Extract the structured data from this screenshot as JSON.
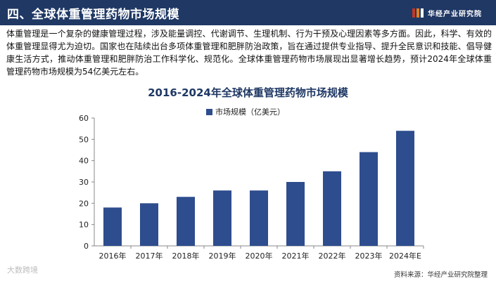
{
  "header": {
    "title": "四、全球体重管理药物市场规模",
    "brand": "华经产业研究院",
    "brand_colors": [
      "#c0392b",
      "#e67e22",
      "#ffffff"
    ]
  },
  "intro": "体重管理是一个复杂的健康管理过程，涉及能量调控、代谢调节、生理机制、行为干预及心理因素等多方面。因此，科学、有效的体重管理显得尤为迫切。国家也在陆续出台多项体重管理和肥胖防治政策，旨在通过提供专业指导、提升全民意识和技能、倡导健康生活方式，推动体重管理和肥胖防治工作科学化、规范化。全球体重管理药物市场展现出显著增长趋势，预计2024年全球体重管理药物市场规模为54亿美元左右。",
  "source": "资料来源：华经产业研究院整理",
  "watermark": "大数跨境",
  "chart_data": {
    "type": "bar",
    "title": "2016-2024年全球体重管理药物市场规模",
    "categories": [
      "2016年",
      "2017年",
      "2018年",
      "2019年",
      "2020年",
      "2021年",
      "2022年",
      "2023年",
      "2024年E"
    ],
    "series": [
      {
        "name": "市场规模（亿美元）",
        "values": [
          18,
          20,
          23,
          26,
          26,
          30,
          35,
          44,
          54
        ],
        "color": "#2e4d8e"
      }
    ],
    "ylim": [
      0,
      60
    ],
    "yticks": [
      0,
      10,
      20,
      30,
      40,
      50,
      60
    ],
    "grid": false,
    "legend_position": "top-center"
  }
}
